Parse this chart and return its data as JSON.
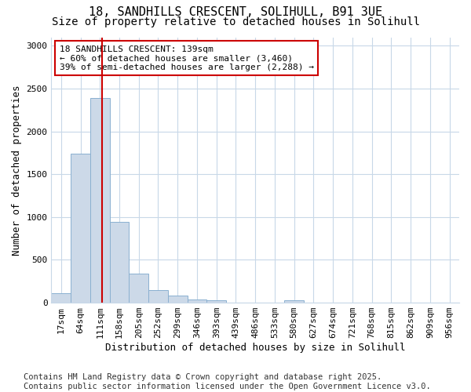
{
  "title_line1": "18, SANDHILLS CRESCENT, SOLIHULL, B91 3UE",
  "title_line2": "Size of property relative to detached houses in Solihull",
  "xlabel": "Distribution of detached houses by size in Solihull",
  "ylabel": "Number of detached properties",
  "categories": [
    "17sqm",
    "64sqm",
    "111sqm",
    "158sqm",
    "205sqm",
    "252sqm",
    "299sqm",
    "346sqm",
    "393sqm",
    "439sqm",
    "486sqm",
    "533sqm",
    "580sqm",
    "627sqm",
    "674sqm",
    "721sqm",
    "768sqm",
    "815sqm",
    "862sqm",
    "909sqm",
    "956sqm"
  ],
  "values": [
    110,
    1740,
    2390,
    940,
    335,
    150,
    80,
    40,
    30,
    0,
    0,
    0,
    25,
    0,
    0,
    0,
    0,
    0,
    0,
    0,
    0
  ],
  "bar_color": "#ccd9e8",
  "bar_edge_color": "#8ab0d0",
  "vline_x_index": 2,
  "vline_color": "#cc0000",
  "annotation_text": "18 SANDHILLS CRESCENT: 139sqm\n← 60% of detached houses are smaller (3,460)\n39% of semi-detached houses are larger (2,288) →",
  "annotation_box_color": "#ffffff",
  "annotation_box_edge_color": "#cc0000",
  "ylim": [
    0,
    3100
  ],
  "yticks": [
    0,
    500,
    1000,
    1500,
    2000,
    2500,
    3000
  ],
  "background_color": "#ffffff",
  "grid_color": "#c8d8e8",
  "footer_text": "Contains HM Land Registry data © Crown copyright and database right 2025.\nContains public sector information licensed under the Open Government Licence v3.0.",
  "title_fontsize": 11,
  "subtitle_fontsize": 10,
  "axis_label_fontsize": 9,
  "tick_fontsize": 8,
  "annotation_fontsize": 8,
  "footer_fontsize": 7.5
}
